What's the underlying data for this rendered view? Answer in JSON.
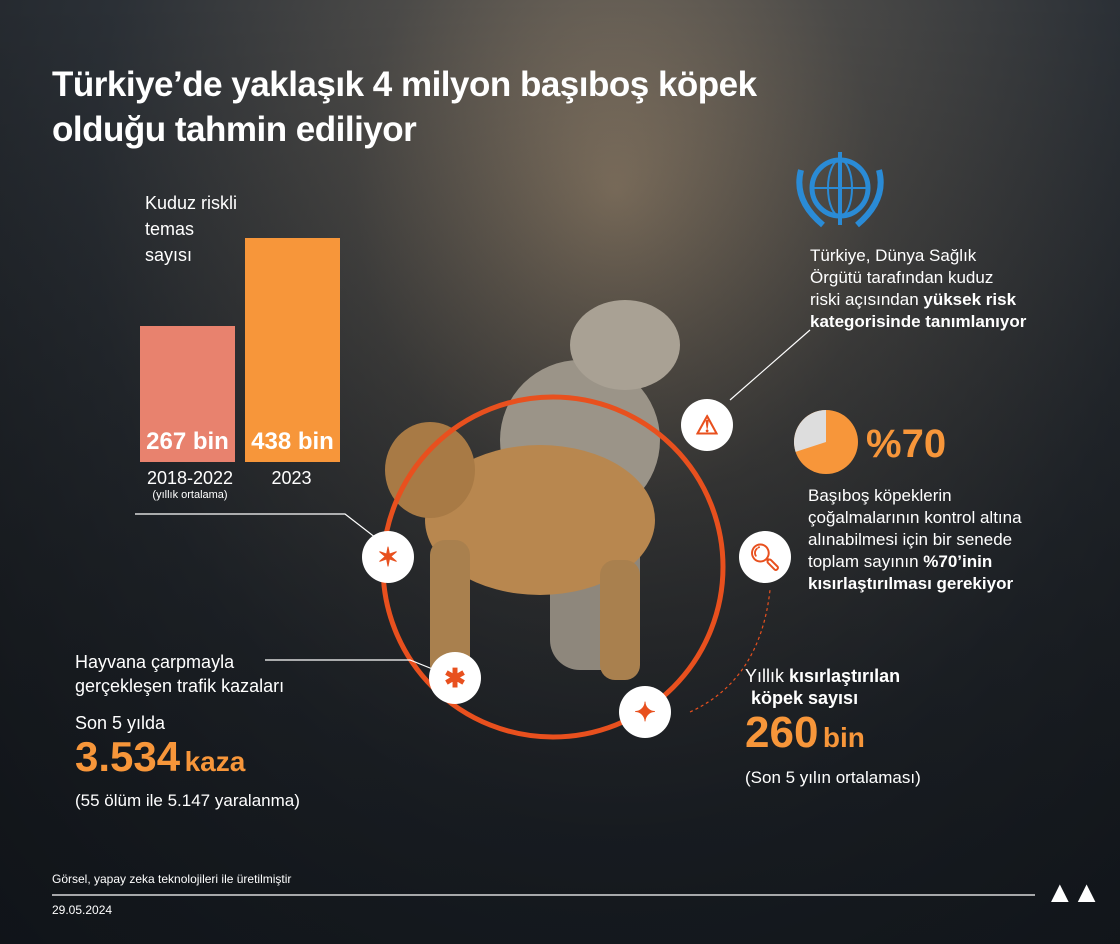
{
  "title": {
    "line1": "Türkiye’de yaklaşık 4 milyon başıboş köpek",
    "line2": "olduğu tahmin ediliyor"
  },
  "rabies": {
    "label_lines": [
      "Kuduz riskli",
      "temas",
      "sayısı"
    ]
  },
  "chart_data": {
    "type": "bar",
    "categories": [
      "2018-2022",
      "2023"
    ],
    "category_notes": [
      "(yıllık ortalama)",
      ""
    ],
    "values": [
      267,
      438
    ],
    "value_labels": [
      "267 bin",
      "438 bin"
    ],
    "colors": [
      "#e8826e",
      "#f7963a"
    ],
    "ylim": [
      0,
      470
    ]
  },
  "who": {
    "line1": "Türkiye, Dünya Sağlık",
    "line2": "Örgütü tarafından kuduz",
    "line3_normal": "riski açısından ",
    "line3_bold": "yüksek risk",
    "line4_bold": "kategorisinde tanımlanıyor",
    "emblem_color": "#2a8bd6"
  },
  "neuter": {
    "percent_label": "%70",
    "percent": 70,
    "line1": "Başıboş köpeklerin",
    "line2": "çoğalmalarının kontrol altına",
    "line3": "alınabilmesi için bir senede",
    "line4_normal": "toplam sayının ",
    "line4_bold": "%70’inin",
    "line5_bold": "kısırlaştırılması gerekiyor"
  },
  "yearly": {
    "label_normal": "Yıllık ",
    "label_bold": "kısırlaştırılan",
    "line2": "köpek sayısı",
    "value": "260",
    "unit": "bin",
    "note": "(Son 5 yılın ortalaması)"
  },
  "traffic": {
    "line1": "Hayvana çarpmayla",
    "line2": "gerçekleşen trafik kazaları",
    "period": "Son 5 yılda",
    "value": "3.534",
    "unit": "kaza",
    "note": "(55 ölüm ile 5.147 yaralanma)"
  },
  "footer": {
    "credit": "Görsel, yapay zeka teknolojileri ile üretilmiştir",
    "date": "29.05.2024",
    "logo": "AA"
  },
  "icons": [
    "warning-icon",
    "dog-attack-icon",
    "report-search-icon",
    "car-accident-icon",
    "dog-catcher-icon"
  ],
  "accent": "#e8501e"
}
